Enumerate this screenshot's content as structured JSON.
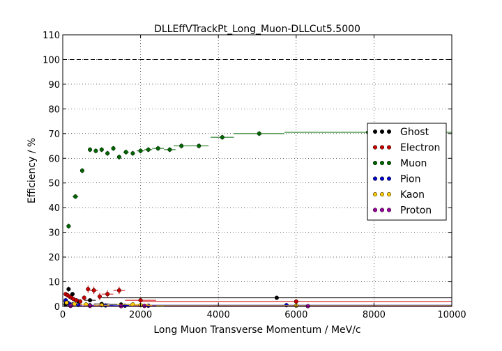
{
  "chart_data": {
    "type": "scatter",
    "title": "DLLEffVTrackPt_Long_Muon-DLLCut5.5000",
    "xlabel": "Long Muon Transverse Momentum / MeV/c",
    "ylabel": "Efficiency / %",
    "xlim": [
      0,
      10000
    ],
    "ylim": [
      0,
      110
    ],
    "x_ticks": [
      "0",
      "2000",
      "4000",
      "6000",
      "8000",
      "10000"
    ],
    "y_ticks": [
      "0",
      "10",
      "20",
      "30",
      "40",
      "50",
      "60",
      "70",
      "80",
      "90",
      "100",
      "110"
    ],
    "grid": true,
    "reference_line": 100,
    "legend_position": "center-right",
    "series": [
      {
        "name": "Ghost",
        "color": "#000000",
        "points": [
          [
            75,
            0.8,
            25,
            0.3
          ],
          [
            150,
            7.0,
            50,
            1.0
          ],
          [
            250,
            5.0,
            50,
            0.8
          ],
          [
            400,
            2.0,
            100,
            0.6
          ],
          [
            700,
            2.5,
            150,
            0.6
          ],
          [
            1000,
            1.0,
            200,
            0.4
          ],
          [
            1500,
            0.8,
            300,
            0.3
          ],
          [
            5500,
            3.5,
            4500,
            0.5
          ]
        ]
      },
      {
        "name": "Electron",
        "color": "#cc0000",
        "points": [
          [
            75,
            5.0,
            25,
            0.8
          ],
          [
            125,
            4.5,
            25,
            0.8
          ],
          [
            175,
            4.0,
            25,
            0.8
          ],
          [
            225,
            3.5,
            25,
            0.8
          ],
          [
            275,
            3.0,
            25,
            0.8
          ],
          [
            350,
            2.5,
            50,
            0.8
          ],
          [
            450,
            2.0,
            50,
            0.9
          ],
          [
            550,
            3.5,
            50,
            1.0
          ],
          [
            650,
            7.0,
            50,
            1.5
          ],
          [
            800,
            6.5,
            100,
            1.5
          ],
          [
            950,
            4.0,
            50,
            1.5
          ],
          [
            1150,
            5.0,
            150,
            1.5
          ],
          [
            1450,
            6.5,
            150,
            1.5
          ],
          [
            2000,
            2.5,
            400,
            1.0
          ],
          [
            6000,
            2.0,
            4000,
            0.8
          ]
        ]
      },
      {
        "name": "Muon",
        "color": "#006600",
        "points": [
          [
            75,
            2.0,
            25,
            0.6
          ],
          [
            150,
            32.5,
            50,
            1.0
          ],
          [
            325,
            44.5,
            75,
            1.0
          ],
          [
            500,
            55.0,
            50,
            1.0
          ],
          [
            700,
            63.5,
            50,
            1.0
          ],
          [
            850,
            63.0,
            50,
            1.0
          ],
          [
            1000,
            63.5,
            50,
            1.0
          ],
          [
            1150,
            62.0,
            50,
            1.0
          ],
          [
            1300,
            64.0,
            50,
            1.0
          ],
          [
            1450,
            60.5,
            50,
            1.0
          ],
          [
            1625,
            62.5,
            75,
            1.0
          ],
          [
            1800,
            62.0,
            50,
            1.0
          ],
          [
            2000,
            63.0,
            100,
            1.0
          ],
          [
            2200,
            63.5,
            100,
            1.0
          ],
          [
            2450,
            64.0,
            150,
            1.0
          ],
          [
            2750,
            63.5,
            150,
            1.0
          ],
          [
            3050,
            65.0,
            200,
            1.0
          ],
          [
            3500,
            65.0,
            250,
            1.0
          ],
          [
            4100,
            68.5,
            300,
            1.0
          ],
          [
            5050,
            70.0,
            650,
            1.0
          ],
          [
            7850,
            70.5,
            2150,
            1.0
          ]
        ]
      },
      {
        "name": "Pion",
        "color": "#0000cc",
        "points": [
          [
            75,
            2.5,
            25,
            0.4
          ],
          [
            125,
            1.5,
            25,
            0.4
          ],
          [
            175,
            1.0,
            25,
            0.3
          ],
          [
            250,
            0.8,
            50,
            0.3
          ],
          [
            400,
            0.6,
            100,
            0.2
          ],
          [
            700,
            0.5,
            150,
            0.2
          ],
          [
            1100,
            0.4,
            200,
            0.2
          ],
          [
            1600,
            0.3,
            300,
            0.2
          ],
          [
            2200,
            0.3,
            300,
            0.2
          ],
          [
            5750,
            0.5,
            4250,
            0.2
          ]
        ]
      },
      {
        "name": "Kaon",
        "color": "#ffcc00",
        "points": [
          [
            100,
            1.5,
            50,
            0.5
          ],
          [
            300,
            1.0,
            100,
            0.4
          ],
          [
            600,
            0.8,
            150,
            0.4
          ],
          [
            1000,
            0.5,
            200,
            0.3
          ],
          [
            1800,
            0.8,
            400,
            0.4
          ],
          [
            2000,
            0.5,
            300,
            0.3
          ],
          [
            6000,
            0.3,
            4000,
            0.2
          ]
        ]
      },
      {
        "name": "Proton",
        "color": "#990099",
        "points": [
          [
            200,
            0.2,
            100,
            0.2
          ],
          [
            700,
            0.2,
            300,
            0.2
          ],
          [
            1500,
            0.1,
            400,
            0.1
          ],
          [
            2100,
            0.2,
            300,
            0.1
          ],
          [
            6300,
            0.1,
            3700,
            0.1
          ]
        ]
      }
    ]
  }
}
